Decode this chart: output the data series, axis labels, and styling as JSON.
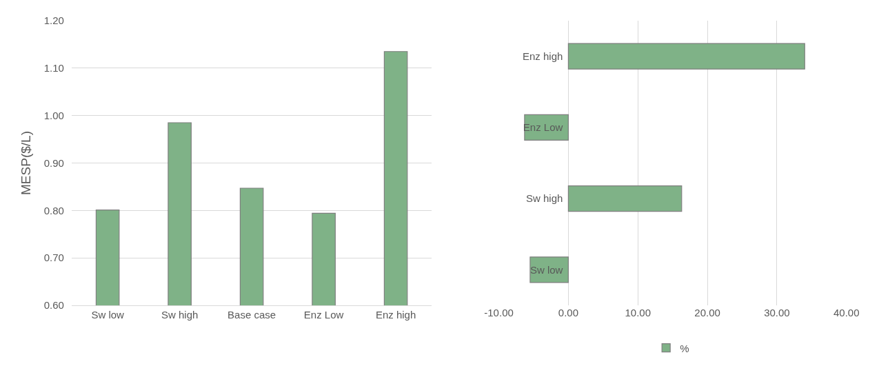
{
  "chart_data": [
    {
      "type": "bar",
      "ylabel": "MESP($/L)",
      "categories": [
        "Sw low",
        "Sw high",
        "Base case",
        "Enz Low",
        "Enz high"
      ],
      "values": [
        0.801,
        0.985,
        0.847,
        0.794,
        1.135
      ],
      "color": "#7fb287",
      "ylim": [
        0.6,
        1.2
      ],
      "yticks": [
        {
          "value": 0.6,
          "label": "0.60"
        },
        {
          "value": 0.7,
          "label": "0.70"
        },
        {
          "value": 0.8,
          "label": "0.80"
        },
        {
          "value": 0.9,
          "label": "0.90"
        },
        {
          "value": 1.0,
          "label": "1.00"
        },
        {
          "value": 1.1,
          "label": "1.10"
        },
        {
          "value": 1.2,
          "label": "1.20"
        }
      ],
      "grid": "y"
    },
    {
      "type": "bar",
      "orientation": "horizontal",
      "categories": [
        "Enz high",
        "Enz Low",
        "Sw high",
        "Sw low"
      ],
      "series": [
        {
          "name": "%",
          "color": "#7fb287",
          "values": [
            34.0,
            -6.3,
            16.3,
            -5.5
          ]
        }
      ],
      "xlim": [
        -10,
        40
      ],
      "xticks": [
        {
          "value": -10,
          "label": "-10.00"
        },
        {
          "value": 0,
          "label": "0.00"
        },
        {
          "value": 10,
          "label": "10.00"
        },
        {
          "value": 20,
          "label": "20.00"
        },
        {
          "value": 30,
          "label": "30.00"
        },
        {
          "value": 40,
          "label": "40.00"
        }
      ],
      "grid": "x",
      "legend": "bottom"
    }
  ]
}
